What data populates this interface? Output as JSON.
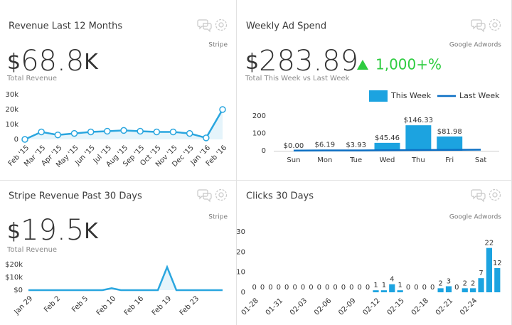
{
  "chart_data": [
    {
      "type": "line",
      "title": "Revenue Last 12 Months",
      "source": "Stripe",
      "kpi": {
        "prefix": "$",
        "value": 68.8,
        "suffix": "K",
        "label": "Total Revenue"
      },
      "categories": [
        "Feb '15",
        "Mar '15",
        "Apr '15",
        "May '15",
        "Jun '15",
        "Jul '15",
        "Aug '15",
        "Sep '15",
        "Oct '15",
        "Nov '15",
        "Dec '15",
        "Jan '16",
        "Feb '16"
      ],
      "values": [
        0,
        5000,
        3000,
        4000,
        5000,
        5500,
        6000,
        5500,
        5000,
        5000,
        4000,
        1000,
        20000
      ],
      "color": "#2aa6df",
      "area": true,
      "markers": true,
      "ylim": [
        0,
        30000
      ],
      "yticks": [
        0,
        {
          "value": 10000,
          "label": "10k"
        },
        {
          "value": 20000,
          "label": "20k"
        },
        {
          "value": 30000,
          "label": "30k"
        }
      ]
    },
    {
      "type": "bar",
      "title": "Weekly Ad Spend",
      "source": "Google Adwords",
      "kpi": {
        "prefix": "$",
        "value": 283.89,
        "label": "Total This Week vs Last Week",
        "change": "1,000+%"
      },
      "categories": [
        "Sun",
        "Mon",
        "Tue",
        "Wed",
        "Thu",
        "Fri",
        "Sat"
      ],
      "series": [
        {
          "name": "This Week",
          "type": "bar",
          "color": "#1ca3e0",
          "values": [
            0.0,
            6.19,
            3.93,
            45.46,
            146.33,
            81.98,
            null
          ],
          "value_labels": [
            "$0.00",
            "$6.19",
            "$3.93",
            "$45.46",
            "$146.33",
            "$81.98",
            null
          ]
        },
        {
          "name": "Last Week",
          "type": "line",
          "color": "#0b6fc4",
          "values": [
            1,
            2,
            2,
            3,
            4,
            5,
            6
          ]
        }
      ],
      "ylim": [
        0,
        200
      ],
      "yticks": [
        0,
        100,
        200
      ]
    },
    {
      "type": "line",
      "title": "Stripe Revenue Past 30 Days",
      "source": "Stripe",
      "kpi": {
        "prefix": "$",
        "value": 19.5,
        "suffix": "K",
        "label": "Total Revenue"
      },
      "categories": [
        "Jan 29",
        null,
        null,
        "Feb 2",
        null,
        null,
        "Feb 5",
        null,
        null,
        "Feb 10",
        null,
        null,
        "Feb 16",
        null,
        null,
        "Feb 19",
        null,
        null,
        "Feb 23",
        null,
        null,
        null
      ],
      "values": [
        0,
        0,
        0,
        0,
        0,
        0,
        0,
        0,
        0,
        1500,
        0,
        0,
        0,
        0,
        0,
        18000,
        0,
        0,
        0,
        0,
        0,
        0
      ],
      "color": "#2aa6df",
      "area": true,
      "markers": false,
      "ylim": [
        0,
        20000
      ],
      "yticks": [
        {
          "value": 0,
          "label": "$0"
        },
        {
          "value": 10000,
          "label": "$10k"
        },
        {
          "value": 20000,
          "label": "$20k"
        }
      ]
    },
    {
      "type": "bar",
      "title": "Clicks 30 Days",
      "source": "Google Adwords",
      "categories": [
        "01-28",
        null,
        null,
        "01-31",
        null,
        null,
        "02-03",
        null,
        null,
        "02-06",
        null,
        null,
        "02-09",
        null,
        null,
        "02-12",
        null,
        null,
        "02-15",
        null,
        null,
        "02-18",
        null,
        null,
        "02-21",
        null,
        null,
        "02-24",
        null,
        null,
        null
      ],
      "series": [
        {
          "type": "bar",
          "color": "#1ca3e0",
          "values": [
            0,
            0,
            0,
            0,
            0,
            0,
            0,
            0,
            0,
            0,
            0,
            0,
            0,
            0,
            0,
            1,
            1,
            4,
            1,
            0,
            0,
            0,
            0,
            2,
            3,
            0,
            2,
            2,
            7,
            22,
            12
          ]
        }
      ],
      "ylim": [
        0,
        30
      ],
      "yticks": [
        0,
        10,
        20,
        30
      ]
    }
  ]
}
